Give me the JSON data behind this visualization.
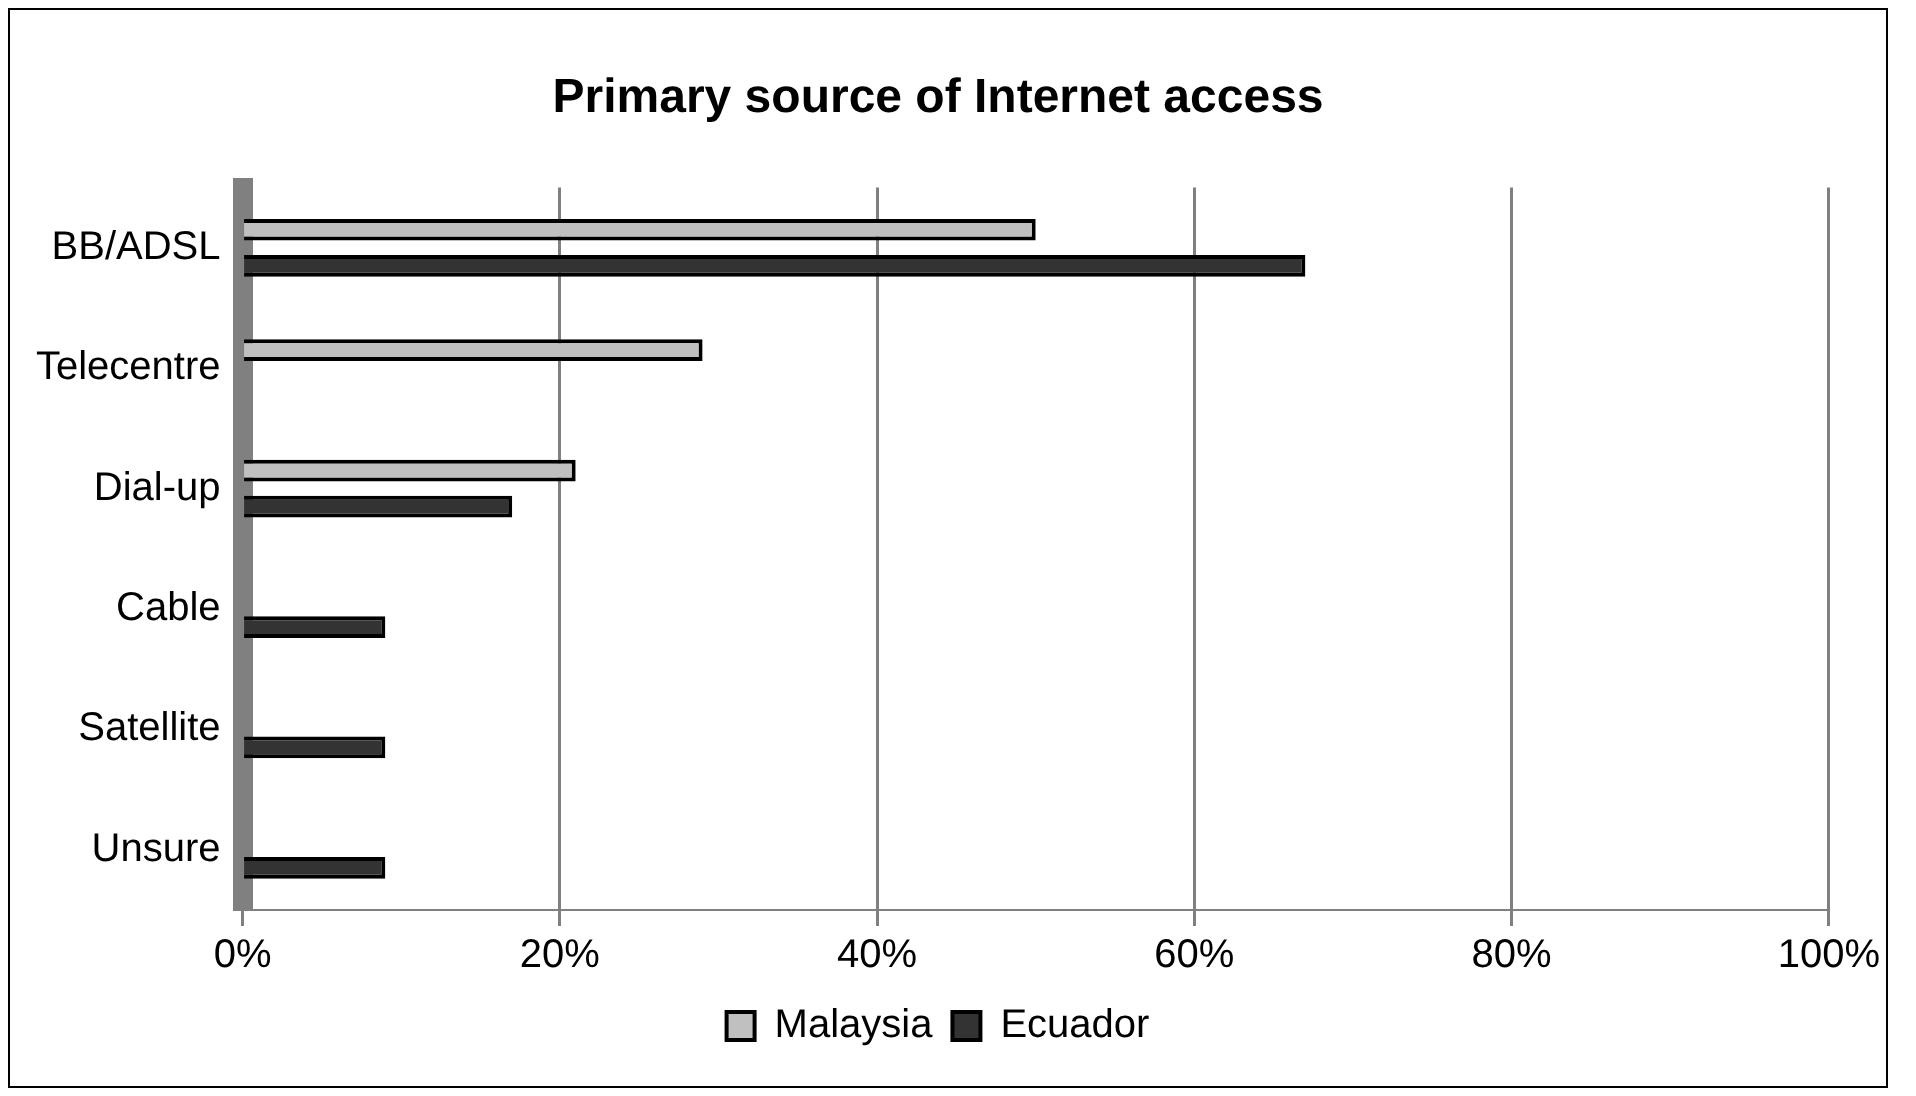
{
  "chart_data": {
    "type": "bar",
    "orientation": "horizontal",
    "title": "Primary source of Internet access",
    "categories": [
      "BB/ADSL",
      "Telecentre",
      "Dial-up",
      "Cable",
      "Satellite",
      "Unsure"
    ],
    "series": [
      {
        "name": "Malaysia",
        "color": "#c0c0c0",
        "values": [
          50,
          29,
          21,
          null,
          null,
          null
        ]
      },
      {
        "name": "Ecuador",
        "color": "#333333",
        "values": [
          67,
          null,
          17,
          9,
          9,
          9
        ]
      }
    ],
    "xlim": [
      0,
      100
    ],
    "xticks": [
      {
        "value": 0,
        "label": "0%"
      },
      {
        "value": 20,
        "label": "20%"
      },
      {
        "value": 40,
        "label": "40%"
      },
      {
        "value": 60,
        "label": "60%"
      },
      {
        "value": 80,
        "label": "80%"
      },
      {
        "value": 100,
        "label": "100%"
      }
    ],
    "grid": "x",
    "legend": "bottom"
  }
}
